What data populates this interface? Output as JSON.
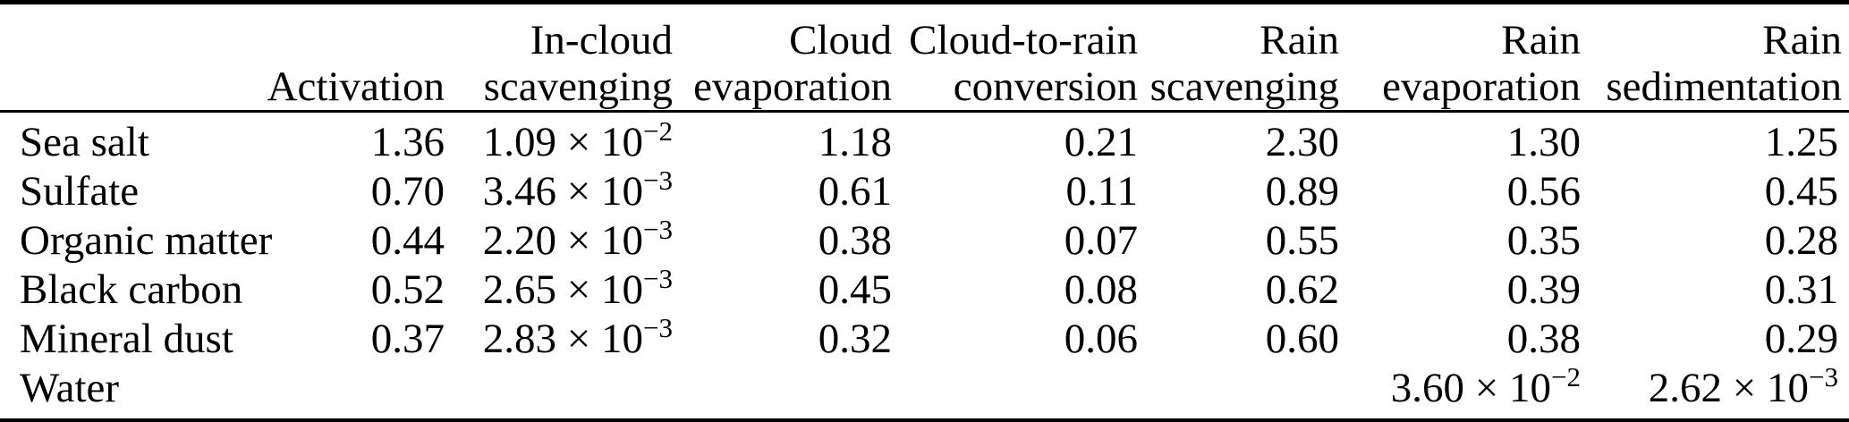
{
  "table": {
    "title_hint": "Aerosol and water process rates table",
    "headers": [
      {
        "line1": "",
        "line2": ""
      },
      {
        "line1": "",
        "line2": "Activation"
      },
      {
        "line1": "In-cloud",
        "line2": "scavenging"
      },
      {
        "line1": "Cloud",
        "line2": "evaporation"
      },
      {
        "line1": "Cloud-to-rain",
        "line2": "conversion"
      },
      {
        "line1": "Rain",
        "line2": "scavenging"
      },
      {
        "line1": "Rain",
        "line2": "evaporation"
      },
      {
        "line1": "Rain",
        "line2": "sedimentation"
      }
    ],
    "rows": [
      {
        "label": "Sea salt",
        "cells": [
          "1.36",
          "1.09 × 10^−2",
          "1.18",
          "0.21",
          "2.30",
          "1.30",
          "1.25"
        ]
      },
      {
        "label": "Sulfate",
        "cells": [
          "0.70",
          "3.46 × 10^−3",
          "0.61",
          "0.11",
          "0.89",
          "0.56",
          "0.45"
        ]
      },
      {
        "label": "Organic matter",
        "cells": [
          "0.44",
          "2.20 × 10^−3",
          "0.38",
          "0.07",
          "0.55",
          "0.35",
          "0.28"
        ]
      },
      {
        "label": "Black carbon",
        "cells": [
          "0.52",
          "2.65 × 10^−3",
          "0.45",
          "0.08",
          "0.62",
          "0.39",
          "0.31"
        ]
      },
      {
        "label": "Mineral dust",
        "cells": [
          "0.37",
          "2.83 × 10^−3",
          "0.32",
          "0.06",
          "0.60",
          "0.38",
          "0.29"
        ]
      },
      {
        "label": "Water",
        "cells": [
          "",
          "",
          "",
          "",
          "",
          "3.60 × 10^−2",
          "2.62 × 10^−3"
        ]
      }
    ]
  },
  "colors": {
    "text": "#000000",
    "rule": "#000000",
    "background": "#ffffff"
  }
}
